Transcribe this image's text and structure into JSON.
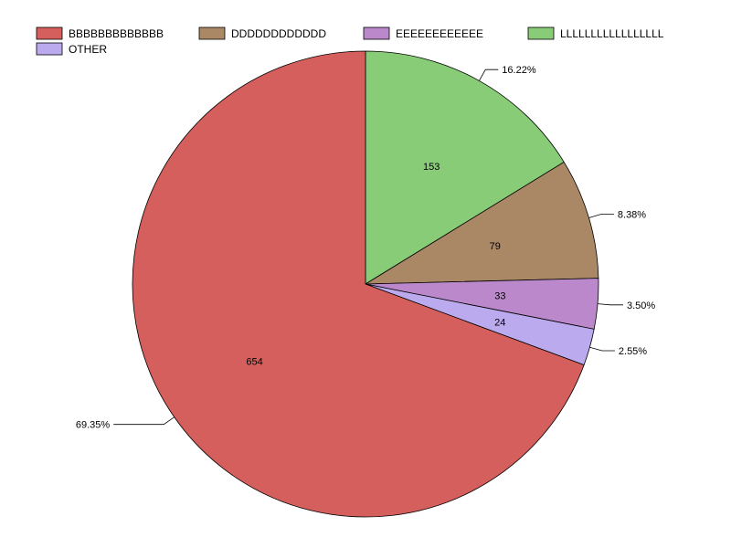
{
  "chart_data": {
    "type": "pie",
    "title": "",
    "start_angle_deg": 0,
    "direction": "clockwise",
    "legend_position": "top",
    "slices": [
      {
        "label": "LLLLLLLLLLLLLLLLL",
        "value": 153,
        "percent": "16.22%",
        "color": "#88cc77"
      },
      {
        "label": "DDDDDDDDDDDD",
        "value": 79,
        "percent": "8.38%",
        "color": "#aa8866"
      },
      {
        "label": "EEEEEEEEEEEE",
        "value": 33,
        "percent": "3.50%",
        "color": "#bb88cc"
      },
      {
        "label": "OTHER",
        "value": 24,
        "percent": "2.55%",
        "color": "#bbaaee"
      },
      {
        "label": "BBBBBBBBBBBBB",
        "value": 654,
        "percent": "69.35%",
        "color": "#d45f5c"
      }
    ],
    "legend_order": [
      "BBBBBBBBBBBBB",
      "DDDDDDDDDDDD",
      "EEEEEEEEEEEE",
      "LLLLLLLLLLLLLLLLL",
      "OTHER"
    ]
  }
}
